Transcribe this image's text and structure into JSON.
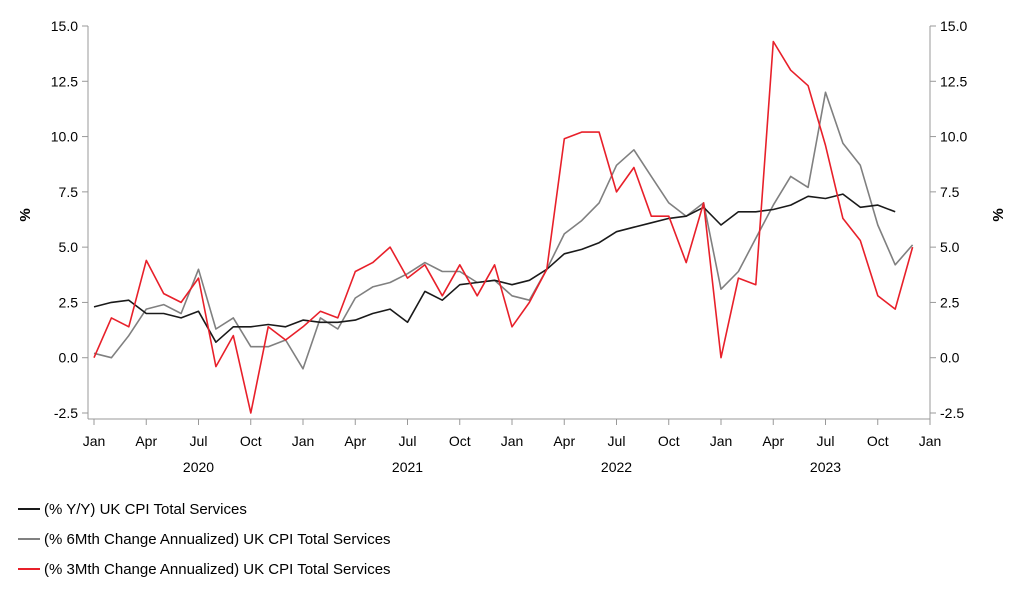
{
  "chart_data": {
    "type": "line",
    "ylabel_left": "%",
    "ylabel_right": "%",
    "ylim": [
      -2.5,
      15.0
    ],
    "yticks": [
      "15.0",
      "12.5",
      "10.0",
      "7.5",
      "5.0",
      "2.5",
      "0.0",
      "-2.5"
    ],
    "x_month_labels": [
      "Jan",
      "Apr",
      "Jul",
      "Oct",
      "Jan",
      "Apr",
      "Jul",
      "Oct",
      "Jan",
      "Apr",
      "Jul",
      "Oct",
      "Jan",
      "Apr",
      "Jul",
      "Oct",
      "Jan"
    ],
    "x_year_labels": [
      "2020",
      "2021",
      "2022",
      "2023"
    ],
    "x_start": "2020-01",
    "x_end": "2024-01",
    "grid": false,
    "legend_position": "bottom-left",
    "series": [
      {
        "name": "(% Y/Y) UK CPI Total Services",
        "color": "#1a1a1a",
        "x": [
          "2020-01",
          "2020-02",
          "2020-03",
          "2020-04",
          "2020-05",
          "2020-06",
          "2020-07",
          "2020-08",
          "2020-09",
          "2020-10",
          "2020-11",
          "2020-12",
          "2021-01",
          "2021-02",
          "2021-03",
          "2021-04",
          "2021-05",
          "2021-06",
          "2021-07",
          "2021-08",
          "2021-09",
          "2021-10",
          "2021-11",
          "2021-12",
          "2022-01",
          "2022-02",
          "2022-03",
          "2022-04",
          "2022-05",
          "2022-06",
          "2022-07",
          "2022-08",
          "2022-09",
          "2022-10",
          "2022-11",
          "2022-12",
          "2023-01",
          "2023-02",
          "2023-03",
          "2023-04",
          "2023-05",
          "2023-06",
          "2023-07",
          "2023-08",
          "2023-09",
          "2023-10",
          "2023-11"
        ],
        "values": [
          2.3,
          2.5,
          2.6,
          2.0,
          2.0,
          1.8,
          2.1,
          0.7,
          1.4,
          1.4,
          1.5,
          1.4,
          1.7,
          1.6,
          1.6,
          1.7,
          2.0,
          2.2,
          1.6,
          3.0,
          2.6,
          3.3,
          3.4,
          3.5,
          3.3,
          3.5,
          4.0,
          4.7,
          4.9,
          5.2,
          5.7,
          5.9,
          6.1,
          6.3,
          6.4,
          6.8,
          6.0,
          6.6,
          6.6,
          6.7,
          6.9,
          7.3,
          7.2,
          7.4,
          6.8,
          6.9,
          6.6
        ]
      },
      {
        "name": "(% 6Mth Change Annualized) UK CPI Total Services",
        "color": "#808080",
        "x": [
          "2020-01",
          "2020-02",
          "2020-03",
          "2020-04",
          "2020-05",
          "2020-06",
          "2020-07",
          "2020-08",
          "2020-09",
          "2020-10",
          "2020-11",
          "2020-12",
          "2021-01",
          "2021-02",
          "2021-03",
          "2021-04",
          "2021-05",
          "2021-06",
          "2021-07",
          "2021-08",
          "2021-09",
          "2021-10",
          "2021-11",
          "2021-12",
          "2022-01",
          "2022-02",
          "2022-03",
          "2022-04",
          "2022-05",
          "2022-06",
          "2022-07",
          "2022-08",
          "2022-09",
          "2022-10",
          "2022-11",
          "2022-12",
          "2023-01",
          "2023-02",
          "2023-03",
          "2023-04",
          "2023-05",
          "2023-06",
          "2023-07",
          "2023-08",
          "2023-09",
          "2023-10",
          "2023-11",
          "2023-12"
        ],
        "values": [
          0.2,
          0.0,
          1.0,
          2.2,
          2.4,
          2.0,
          4.0,
          1.3,
          1.8,
          0.5,
          0.5,
          0.8,
          -0.5,
          1.8,
          1.3,
          2.7,
          3.2,
          3.4,
          3.8,
          4.3,
          3.9,
          3.9,
          3.4,
          3.5,
          2.8,
          2.6,
          4.0,
          5.6,
          6.2,
          7.0,
          8.7,
          9.4,
          8.2,
          7.0,
          6.4,
          7.0,
          3.1,
          3.9,
          5.4,
          6.9,
          8.2,
          7.7,
          12.0,
          9.7,
          8.7,
          6.0,
          4.2,
          5.1
        ]
      },
      {
        "name": "(% 3Mth Change Annualized) UK CPI Total Services",
        "color": "#e8202a",
        "x": [
          "2020-01",
          "2020-02",
          "2020-03",
          "2020-04",
          "2020-05",
          "2020-06",
          "2020-07",
          "2020-08",
          "2020-09",
          "2020-10",
          "2020-11",
          "2020-12",
          "2021-01",
          "2021-02",
          "2021-03",
          "2021-04",
          "2021-05",
          "2021-06",
          "2021-07",
          "2021-08",
          "2021-09",
          "2021-10",
          "2021-11",
          "2021-12",
          "2022-01",
          "2022-02",
          "2022-03",
          "2022-04",
          "2022-05",
          "2022-06",
          "2022-07",
          "2022-08",
          "2022-09",
          "2022-10",
          "2022-11",
          "2022-12",
          "2023-01",
          "2023-02",
          "2023-03",
          "2023-04",
          "2023-05",
          "2023-06",
          "2023-07",
          "2023-08",
          "2023-09",
          "2023-10",
          "2023-11",
          "2023-12"
        ],
        "values": [
          0.0,
          1.8,
          1.4,
          4.4,
          2.9,
          2.5,
          3.6,
          -0.4,
          1.0,
          -2.5,
          1.4,
          0.8,
          1.4,
          2.1,
          1.8,
          3.9,
          4.3,
          5.0,
          3.6,
          4.2,
          2.8,
          4.2,
          2.8,
          4.2,
          1.4,
          2.5,
          4.0,
          9.9,
          10.2,
          10.2,
          7.5,
          8.6,
          6.4,
          6.4,
          4.3,
          7.0,
          0.0,
          3.6,
          3.3,
          14.3,
          13.0,
          12.3,
          9.6,
          6.3,
          5.3,
          2.8,
          2.2,
          5.0
        ]
      }
    ]
  },
  "legend": {
    "items": [
      {
        "label": "(% Y/Y) UK CPI Total Services",
        "color": "#1a1a1a"
      },
      {
        "label": "(% 6Mth Change Annualized) UK CPI Total Services",
        "color": "#808080"
      },
      {
        "label": "(% 3Mth Change Annualized) UK CPI Total Services",
        "color": "#e8202a"
      }
    ]
  },
  "colors": {
    "axis": "#999999"
  }
}
